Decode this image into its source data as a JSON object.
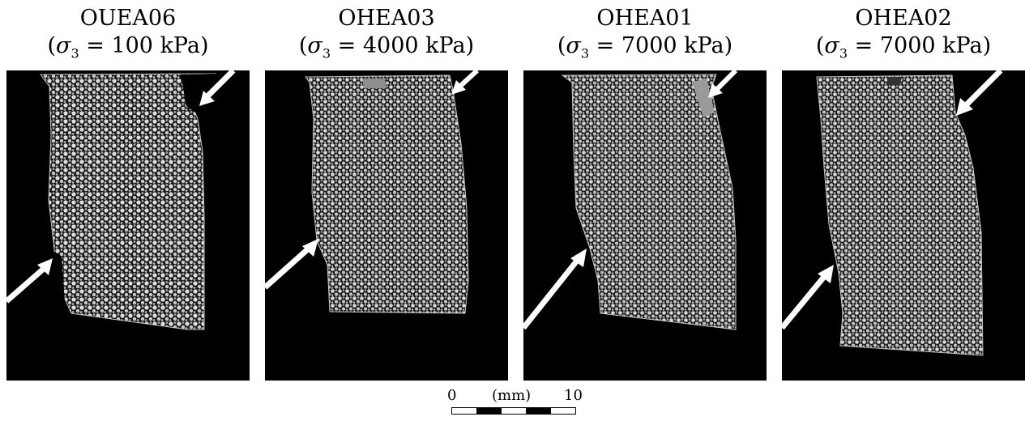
{
  "panels": [
    {
      "id": "OUEA06",
      "sigma_value": "100 kPa"
    },
    {
      "id": "OHEA03",
      "sigma_value": "4000 kPa"
    },
    {
      "id": "OHEA01",
      "sigma_value": "7000 kPa"
    },
    {
      "id": "OHEA02",
      "sigma_value": "7000 kPa"
    }
  ],
  "sigma_symbol": "σ",
  "sigma_sub": "3",
  "equals": "=",
  "scale_bar": {
    "left_label": "0",
    "unit_label": "(mm)",
    "right_label": "10"
  },
  "colors": {
    "background": "#000000",
    "grains": "#d9d9d9",
    "arrow": "#ffffff"
  }
}
